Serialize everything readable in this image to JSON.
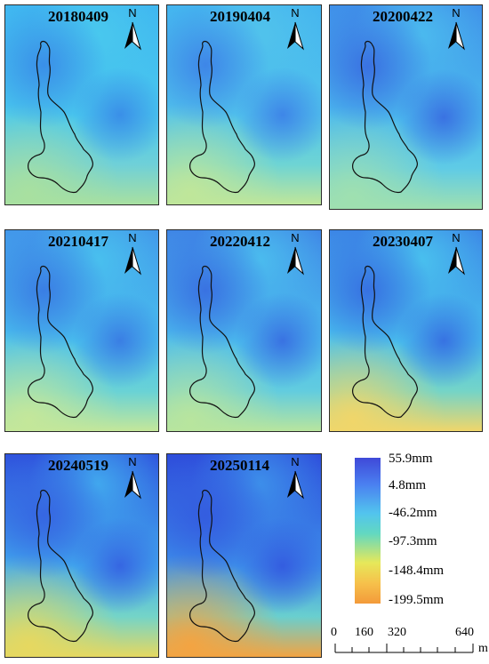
{
  "panels": [
    {
      "date": "20180409",
      "north": "N"
    },
    {
      "date": "20190404",
      "north": "N"
    },
    {
      "date": "20200422",
      "north": "N"
    },
    {
      "date": "20210417",
      "north": "N"
    },
    {
      "date": "20220412",
      "north": "N"
    },
    {
      "date": "20230407",
      "north": "N"
    },
    {
      "date": "20240519",
      "north": "N"
    },
    {
      "date": "20250114",
      "north": "N"
    }
  ],
  "legend": {
    "labels": [
      "55.9mm",
      "4.8mm",
      "-46.2mm",
      "-97.3mm",
      "-148.4mm",
      "-199.5mm"
    ],
    "colors": [
      "#3f49d8",
      "#4a7ff0",
      "#52c4ee",
      "#62d8c0",
      "#e6e85a",
      "#f39a3a"
    ]
  },
  "scale": {
    "ticks": [
      "0",
      "160",
      "320",
      "640"
    ],
    "unit": "m"
  }
}
